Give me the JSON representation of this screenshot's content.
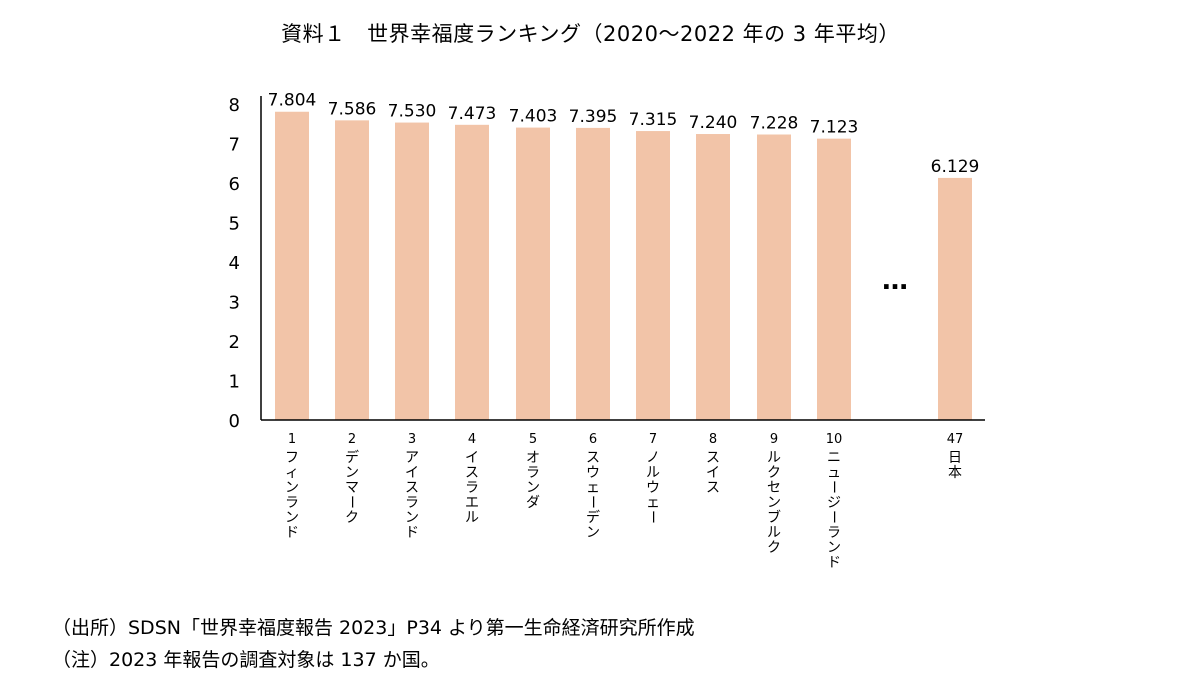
{
  "title": "資料１　世界幸福度ランキング（2020～2022 年の 3 年平均）",
  "chart_data": {
    "type": "bar",
    "ylim": [
      0,
      8
    ],
    "yticks": [
      0,
      1,
      2,
      3,
      4,
      5,
      6,
      7,
      8
    ],
    "bar_color": "#f2c4a8",
    "ellipsis": "…",
    "categories": [
      {
        "rank": "1",
        "name": "フィンランド"
      },
      {
        "rank": "2",
        "name": "デンマーク"
      },
      {
        "rank": "3",
        "name": "アイスランド"
      },
      {
        "rank": "4",
        "name": "イスラエル"
      },
      {
        "rank": "5",
        "name": "オランダ"
      },
      {
        "rank": "6",
        "name": "スウェーデン"
      },
      {
        "rank": "7",
        "name": "ノルウェー"
      },
      {
        "rank": "8",
        "name": "スイス"
      },
      {
        "rank": "9",
        "name": "ルクセンブルク"
      },
      {
        "rank": "10",
        "name": "ニュージーランド"
      },
      {
        "rank": "47",
        "name": "日本"
      }
    ],
    "values": [
      7.804,
      7.586,
      7.53,
      7.473,
      7.403,
      7.395,
      7.315,
      7.24,
      7.228,
      7.123,
      6.129
    ],
    "value_labels": [
      "7.804",
      "7.586",
      "7.530",
      "7.473",
      "7.403",
      "7.395",
      "7.315",
      "7.240",
      "7.228",
      "7.123",
      "6.129"
    ]
  },
  "notes": {
    "source": "（出所）SDSN「世界幸福度報告 2023」P34 より第一生命経済研究所作成",
    "note": "（注）2023 年報告の調査対象は 137 か国。"
  }
}
